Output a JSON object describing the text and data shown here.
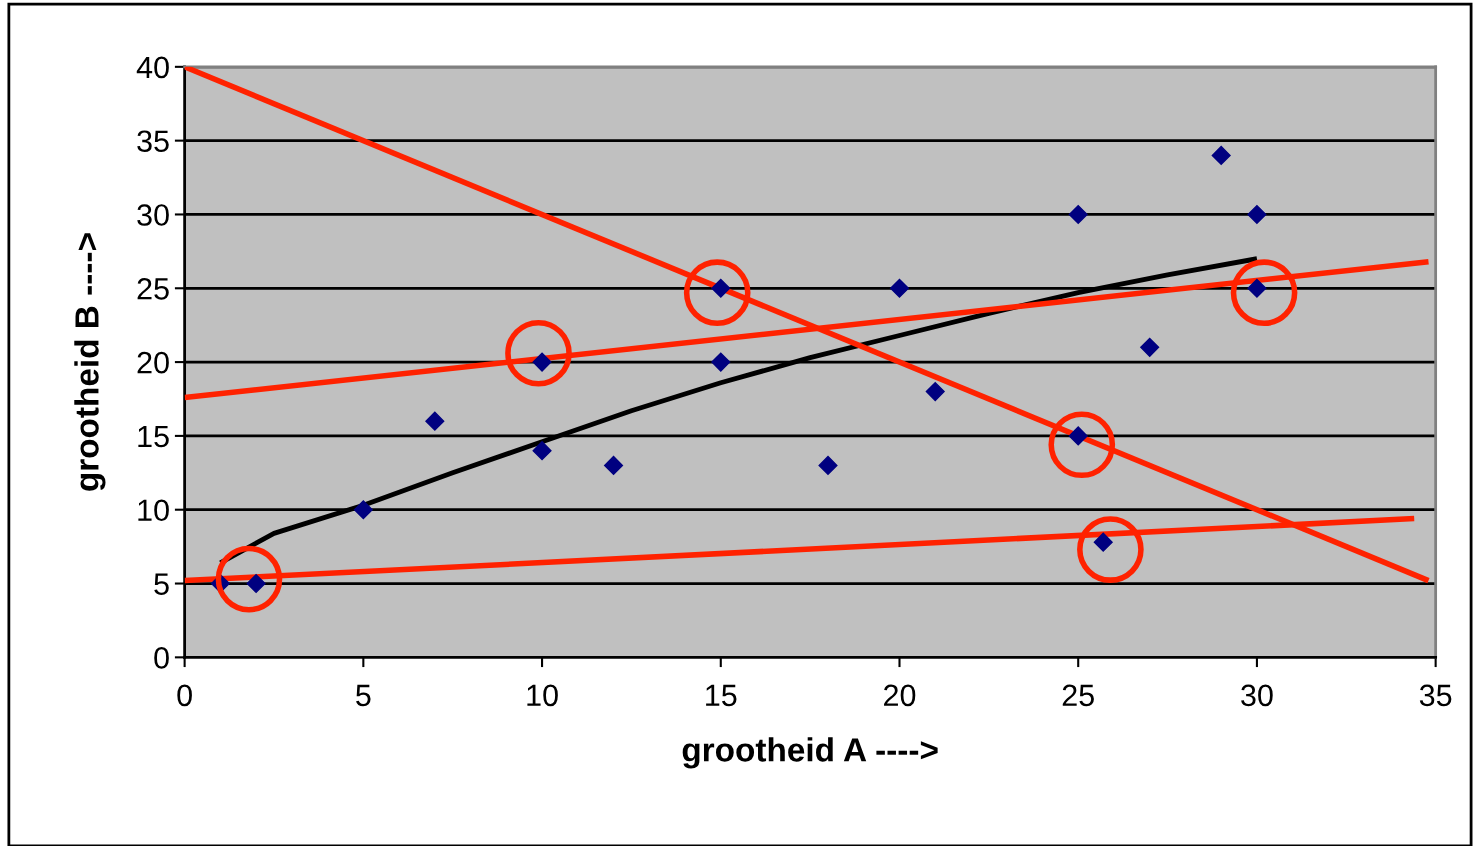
{
  "chart_data": {
    "type": "scatter",
    "xlabel": "grootheid A ---->",
    "ylabel": "grootheid B ---->",
    "xlim": [
      0,
      35
    ],
    "xticks": [
      0,
      5,
      10,
      15,
      20,
      25,
      30,
      35
    ],
    "ylim": [
      0,
      40
    ],
    "yticks": [
      0,
      5,
      10,
      15,
      20,
      25,
      30,
      35,
      40
    ],
    "grid": "y",
    "legend": false,
    "series": [
      {
        "marker": "diamond",
        "color": "#000080",
        "x": [
          1,
          2,
          5,
          7,
          10,
          10,
          12,
          15,
          15,
          18,
          20,
          21,
          25,
          25,
          25.7,
          27,
          29,
          30,
          30
        ],
        "values": [
          5,
          5,
          10,
          16,
          20,
          14,
          13,
          25,
          20,
          13,
          25,
          18,
          30,
          15,
          7.8,
          21,
          34,
          30,
          25
        ]
      },
      {
        "type": "line",
        "marker": "none",
        "color": "#000000",
        "x": [
          1,
          2.5,
          5,
          7.5,
          10,
          12.5,
          15,
          17.5,
          20,
          22.5,
          25,
          27.5,
          30
        ],
        "values": [
          6.4,
          8.4,
          10.3,
          12.5,
          14.6,
          16.7,
          18.6,
          20.3,
          21.8,
          23.3,
          24.7,
          25.9,
          27
        ]
      },
      {
        "type": "line",
        "marker": "none",
        "color": "#ff2200",
        "x": [
          0,
          34.8
        ],
        "values": [
          40,
          5.2
        ]
      },
      {
        "type": "line",
        "marker": "none",
        "color": "#ff2200",
        "x": [
          0,
          34.8
        ],
        "values": [
          17.6,
          26.8
        ]
      },
      {
        "type": "line",
        "marker": "none",
        "color": "#ff2200",
        "x": [
          0,
          34.4
        ],
        "values": [
          5.2,
          9.4
        ]
      },
      {
        "marker": "circle",
        "color": "#ff2200",
        "x": [
          1.8,
          9.9,
          14.9,
          25.1,
          25.9,
          30.2
        ],
        "values": [
          5.3,
          20.6,
          24.7,
          14.4,
          7.3,
          24.7
        ]
      }
    ]
  }
}
